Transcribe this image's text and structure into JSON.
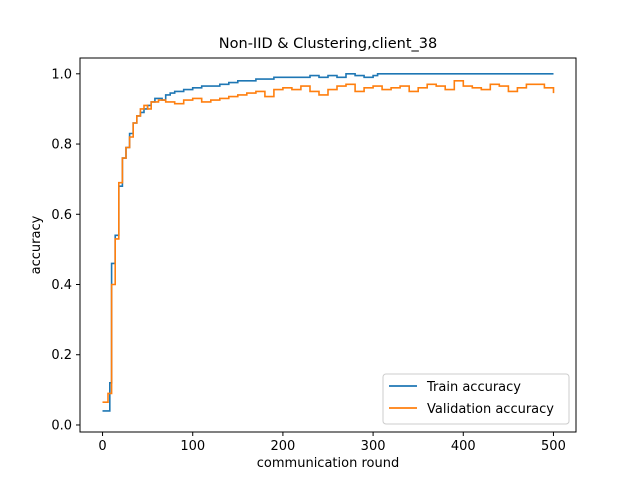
{
  "chart_data": {
    "type": "line",
    "title": "Non-IID & Clustering,client_38",
    "xlabel": "communication round",
    "ylabel": "accuracy",
    "xlim": [
      -25,
      525
    ],
    "ylim": [
      -0.02,
      1.045
    ],
    "xticks": [
      0,
      100,
      200,
      300,
      400,
      500
    ],
    "yticks": [
      0.0,
      0.2,
      0.4,
      0.6,
      0.8,
      1.0
    ],
    "xtick_labels": [
      "0",
      "100",
      "200",
      "300",
      "400",
      "500"
    ],
    "ytick_labels": [
      "0.0",
      "0.2",
      "0.4",
      "0.6",
      "0.8",
      "1.0"
    ],
    "grid": false,
    "legend_position": "lower-right",
    "step": true,
    "series": [
      {
        "name": "Train accuracy",
        "color": "#1f77b4",
        "x": [
          0,
          8,
          10,
          14,
          18,
          22,
          26,
          30,
          34,
          38,
          42,
          46,
          50,
          54,
          58,
          62,
          66,
          70,
          75,
          80,
          90,
          100,
          110,
          120,
          130,
          140,
          150,
          160,
          170,
          180,
          190,
          200,
          210,
          220,
          230,
          240,
          250,
          260,
          270,
          280,
          290,
          300,
          305,
          310,
          400,
          500
        ],
        "y": [
          0.04,
          0.12,
          0.46,
          0.54,
          0.68,
          0.76,
          0.79,
          0.83,
          0.86,
          0.88,
          0.89,
          0.9,
          0.91,
          0.92,
          0.93,
          0.93,
          0.925,
          0.94,
          0.945,
          0.95,
          0.955,
          0.96,
          0.965,
          0.965,
          0.97,
          0.975,
          0.98,
          0.98,
          0.985,
          0.985,
          0.99,
          0.99,
          0.99,
          0.99,
          0.995,
          0.99,
          0.995,
          0.99,
          1.0,
          0.995,
          0.99,
          0.995,
          1.0,
          1.0,
          1.0,
          1.0
        ]
      },
      {
        "name": "Validation accuracy",
        "color": "#ff7f0e",
        "x": [
          0,
          6,
          10,
          14,
          18,
          22,
          26,
          30,
          34,
          38,
          42,
          46,
          50,
          54,
          58,
          62,
          70,
          80,
          90,
          100,
          110,
          120,
          130,
          140,
          150,
          160,
          170,
          180,
          190,
          200,
          210,
          220,
          230,
          240,
          250,
          260,
          270,
          280,
          290,
          300,
          310,
          320,
          330,
          340,
          350,
          360,
          370,
          380,
          390,
          400,
          410,
          420,
          430,
          440,
          450,
          460,
          470,
          480,
          490,
          500
        ],
        "y": [
          0.065,
          0.09,
          0.4,
          0.53,
          0.69,
          0.76,
          0.79,
          0.82,
          0.86,
          0.88,
          0.9,
          0.91,
          0.9,
          0.92,
          0.92,
          0.925,
          0.92,
          0.915,
          0.925,
          0.93,
          0.92,
          0.925,
          0.93,
          0.935,
          0.94,
          0.945,
          0.95,
          0.935,
          0.955,
          0.96,
          0.955,
          0.965,
          0.95,
          0.94,
          0.955,
          0.965,
          0.97,
          0.95,
          0.96,
          0.965,
          0.955,
          0.96,
          0.965,
          0.95,
          0.96,
          0.97,
          0.965,
          0.955,
          0.98,
          0.965,
          0.96,
          0.955,
          0.97,
          0.965,
          0.95,
          0.96,
          0.97,
          0.97,
          0.96,
          0.945
        ]
      }
    ]
  }
}
